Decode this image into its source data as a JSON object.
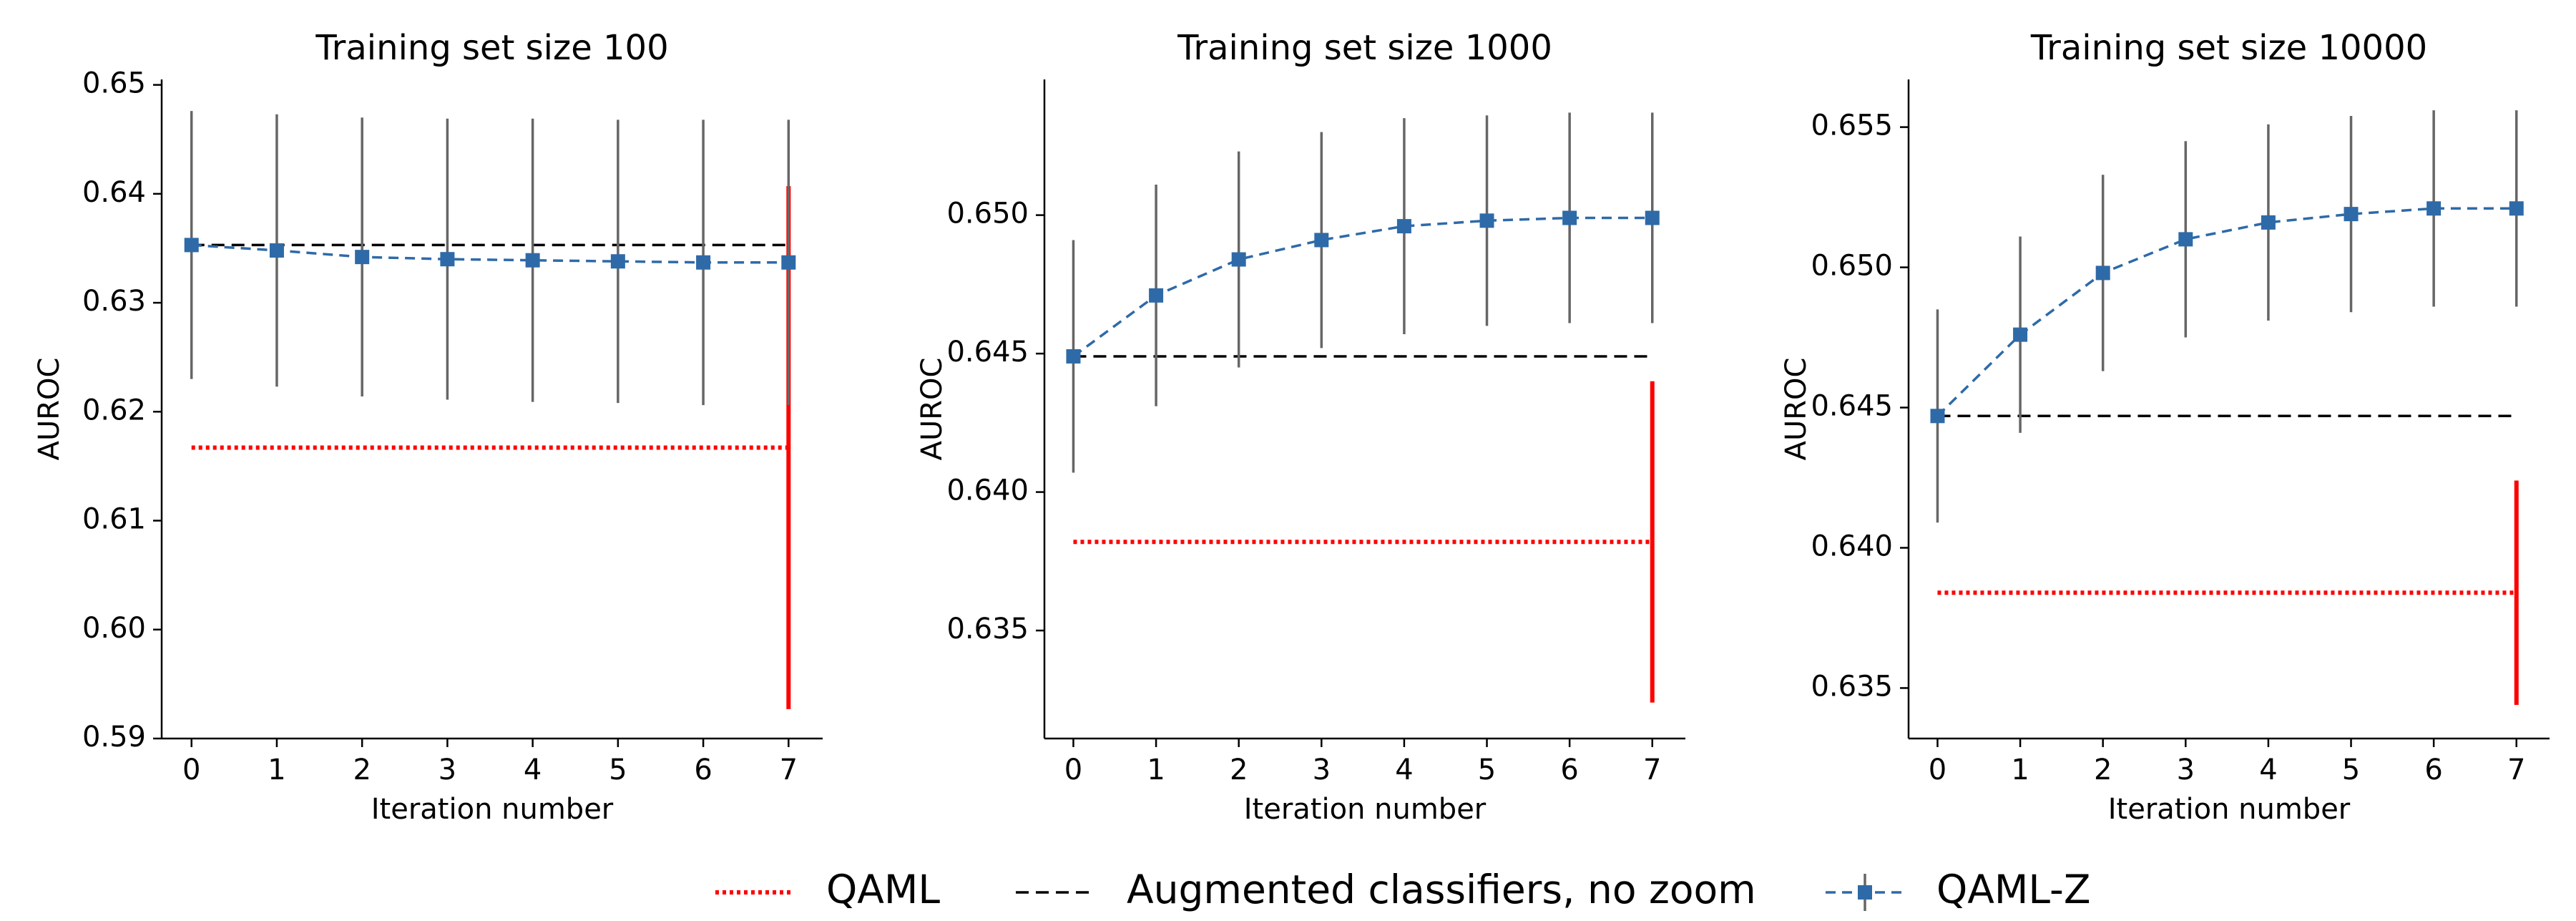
{
  "chart_data": [
    {
      "type": "line",
      "title": "Training set size 100",
      "xlabel": "Iteration number",
      "ylabel": "AUROC",
      "x": [
        0,
        1,
        2,
        3,
        4,
        5,
        6,
        7
      ],
      "xlim": [
        -0.35,
        7.4
      ],
      "xticks": [
        0,
        1,
        2,
        3,
        4,
        5,
        6,
        7
      ],
      "ylim": [
        0.59,
        0.6505
      ],
      "yticks": [
        0.59,
        {
          "value": 0.6,
          "label": "0.60"
        },
        0.61,
        0.62,
        0.63,
        0.64,
        0.65
      ],
      "series": [
        {
          "name": "QAML",
          "color": "#ff0000",
          "style": "dotted",
          "values": [
            0.6167,
            0.6167,
            0.6167,
            0.6167,
            0.6167,
            0.6167,
            0.6167,
            0.6167
          ],
          "errors": [
            null,
            null,
            null,
            null,
            null,
            null,
            null,
            0.024
          ]
        },
        {
          "name": "Augmented classifiers, no zoom",
          "color": "#000000",
          "style": "dashed",
          "values": [
            0.6353,
            0.6353,
            0.6353,
            0.6353,
            0.6353,
            0.6353,
            0.6353,
            0.6353
          ]
        },
        {
          "name": "QAML-Z",
          "color": "#2e6aa8",
          "style": "dashed-square",
          "values": [
            0.6353,
            0.6348,
            0.6342,
            0.634,
            0.6339,
            0.6338,
            0.6337,
            0.6337
          ],
          "errors": [
            0.0123,
            0.0125,
            0.0128,
            0.0129,
            0.013,
            0.013,
            0.0131,
            0.0131
          ]
        }
      ]
    },
    {
      "type": "line",
      "title": "Training set size 1000",
      "xlabel": "Iteration number",
      "ylabel": "AUROC",
      "x": [
        0,
        1,
        2,
        3,
        4,
        5,
        6,
        7
      ],
      "xlim": [
        -0.35,
        7.4
      ],
      "xticks": [
        0,
        1,
        2,
        3,
        4,
        5,
        6,
        7
      ],
      "ylim": [
        0.6311,
        0.6549
      ],
      "yticks": [
        0.635,
        {
          "value": 0.64,
          "label": "0.640"
        },
        0.645,
        {
          "value": 0.65,
          "label": "0.650"
        }
      ],
      "series": [
        {
          "color": "#ff0000",
          "style": "dotted",
          "values": [
            0.6382,
            0.6382,
            0.6382,
            0.6382,
            0.6382,
            0.6382,
            0.6382,
            0.6382
          ],
          "errors": [
            null,
            null,
            null,
            null,
            null,
            null,
            null,
            0.0058
          ]
        },
        {
          "color": "#000000",
          "style": "dashed",
          "values": [
            0.6449,
            0.6449,
            0.6449,
            0.6449,
            0.6449,
            0.6449,
            0.6449,
            0.6449
          ]
        },
        {
          "color": "#2e6aa8",
          "style": "dashed-square",
          "values": [
            0.6449,
            0.6471,
            0.6484,
            0.6491,
            0.6496,
            0.6498,
            0.6499,
            0.6499
          ],
          "errors": [
            0.0042,
            0.004,
            0.0039,
            0.0039,
            0.0039,
            0.0038,
            0.0038,
            0.0038
          ]
        }
      ]
    },
    {
      "type": "line",
      "title": "Training set size 10000",
      "xlabel": "Iteration number",
      "ylabel": "AUROC",
      "x": [
        0,
        1,
        2,
        3,
        4,
        5,
        6,
        7
      ],
      "xlim": [
        -0.35,
        7.4
      ],
      "xticks": [
        0,
        1,
        2,
        3,
        4,
        5,
        6,
        7
      ],
      "ylim": [
        0.6332,
        0.6567
      ],
      "yticks": [
        0.635,
        {
          "value": 0.64,
          "label": "0.640"
        },
        0.645,
        {
          "value": 0.65,
          "label": "0.650"
        },
        0.655
      ],
      "series": [
        {
          "color": "#ff0000",
          "style": "dotted",
          "values": [
            0.6384,
            0.6384,
            0.6384,
            0.6384,
            0.6384,
            0.6384,
            0.6384,
            0.6384
          ],
          "errors": [
            null,
            null,
            null,
            null,
            null,
            null,
            null,
            0.004
          ]
        },
        {
          "color": "#000000",
          "style": "dashed",
          "values": [
            0.6447,
            0.6447,
            0.6447,
            0.6447,
            0.6447,
            0.6447,
            0.6447,
            0.6447
          ]
        },
        {
          "color": "#2e6aa8",
          "style": "dashed-square",
          "values": [
            0.6447,
            0.6476,
            0.6498,
            0.651,
            0.6516,
            0.6519,
            0.6521,
            0.6521
          ],
          "errors": [
            0.0038,
            0.0035,
            0.0035,
            0.0035,
            0.0035,
            0.0035,
            0.0035,
            0.0035
          ]
        }
      ]
    }
  ]
}
